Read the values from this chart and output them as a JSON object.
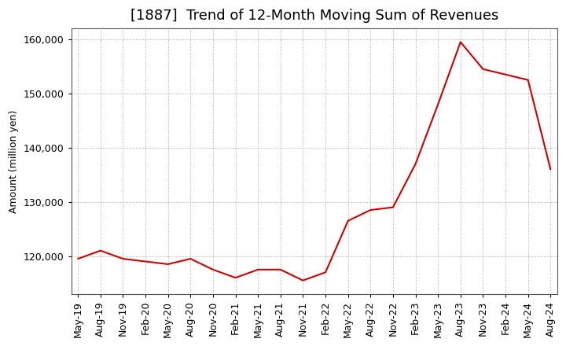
{
  "title": "[1887]  Trend of 12-Month Moving Sum of Revenues",
  "ylabel": "Amount (million yen)",
  "line_color": "#cc0000",
  "background_color": "#ffffff",
  "grid_color": "#999999",
  "x_labels": [
    "May-19",
    "Aug-19",
    "Nov-19",
    "Feb-20",
    "May-20",
    "Aug-20",
    "Nov-20",
    "Feb-21",
    "May-21",
    "Aug-21",
    "Nov-21",
    "Feb-22",
    "May-22",
    "Aug-22",
    "Nov-22",
    "Feb-23",
    "May-23",
    "Aug-23",
    "Nov-23",
    "Feb-24",
    "May-24",
    "Aug-24"
  ],
  "values": [
    119500,
    121000,
    119500,
    119000,
    118500,
    119500,
    117500,
    116000,
    117500,
    117500,
    115500,
    117000,
    126500,
    128500,
    129000,
    137000,
    148000,
    159500,
    154500,
    153500,
    152500,
    136000
  ],
  "ylim": [
    113000,
    162000
  ],
  "yticks": [
    120000,
    130000,
    140000,
    150000,
    160000
  ],
  "title_fontsize": 13,
  "label_fontsize": 9,
  "tick_fontsize": 9
}
